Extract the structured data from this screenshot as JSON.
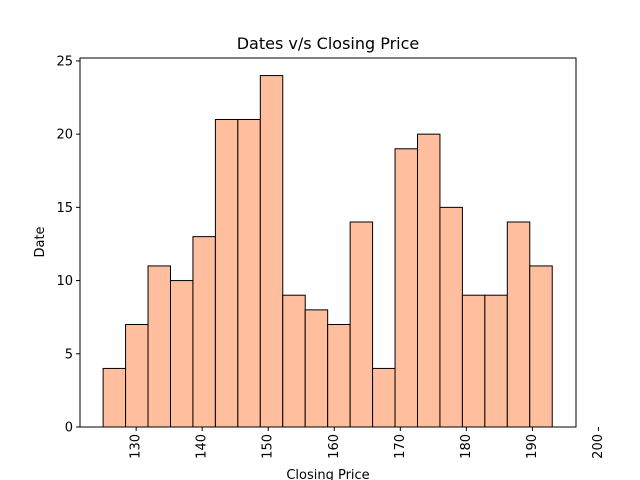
{
  "chart_data": {
    "type": "histogram",
    "title": "Dates v/s Closing Price",
    "xlabel": "Closing Price",
    "ylabel": "Date",
    "bins": [
      {
        "x0": 125.0,
        "x1": 128.4,
        "count": 4
      },
      {
        "x0": 128.4,
        "x1": 131.8,
        "count": 7
      },
      {
        "x0": 131.8,
        "x1": 135.2,
        "count": 11
      },
      {
        "x0": 135.2,
        "x1": 138.6,
        "count": 10
      },
      {
        "x0": 138.6,
        "x1": 142.0,
        "count": 13
      },
      {
        "x0": 142.0,
        "x1": 145.4,
        "count": 21
      },
      {
        "x0": 145.4,
        "x1": 148.8,
        "count": 21
      },
      {
        "x0": 148.8,
        "x1": 152.2,
        "count": 24
      },
      {
        "x0": 152.2,
        "x1": 155.6,
        "count": 9
      },
      {
        "x0": 155.6,
        "x1": 159.0,
        "count": 8
      },
      {
        "x0": 159.0,
        "x1": 162.4,
        "count": 7
      },
      {
        "x0": 162.4,
        "x1": 165.8,
        "count": 14
      },
      {
        "x0": 165.8,
        "x1": 169.2,
        "count": 4
      },
      {
        "x0": 169.2,
        "x1": 172.6,
        "count": 19
      },
      {
        "x0": 172.6,
        "x1": 176.0,
        "count": 20
      },
      {
        "x0": 176.0,
        "x1": 179.4,
        "count": 15
      },
      {
        "x0": 179.4,
        "x1": 182.8,
        "count": 9
      },
      {
        "x0": 182.8,
        "x1": 186.2,
        "count": 9
      },
      {
        "x0": 186.2,
        "x1": 189.6,
        "count": 14
      },
      {
        "x0": 189.6,
        "x1": 193.0,
        "count": 11
      }
    ],
    "xlim": [
      121.5,
      196.6
    ],
    "ylim": [
      0,
      25.2
    ],
    "xticks": [
      130,
      140,
      150,
      160,
      170,
      180,
      190,
      200
    ],
    "xtick_labels": [
      "130",
      "140",
      "150",
      "160",
      "170",
      "180",
      "190",
      "200"
    ],
    "xtick_rotation": 90,
    "yticks": [
      0,
      5,
      10,
      15,
      20,
      25
    ],
    "ytick_labels": [
      "0",
      "5",
      "10",
      "15",
      "20",
      "25"
    ],
    "grid": false,
    "bar_color": "#ffbe9e",
    "edge_color": "#000000"
  }
}
